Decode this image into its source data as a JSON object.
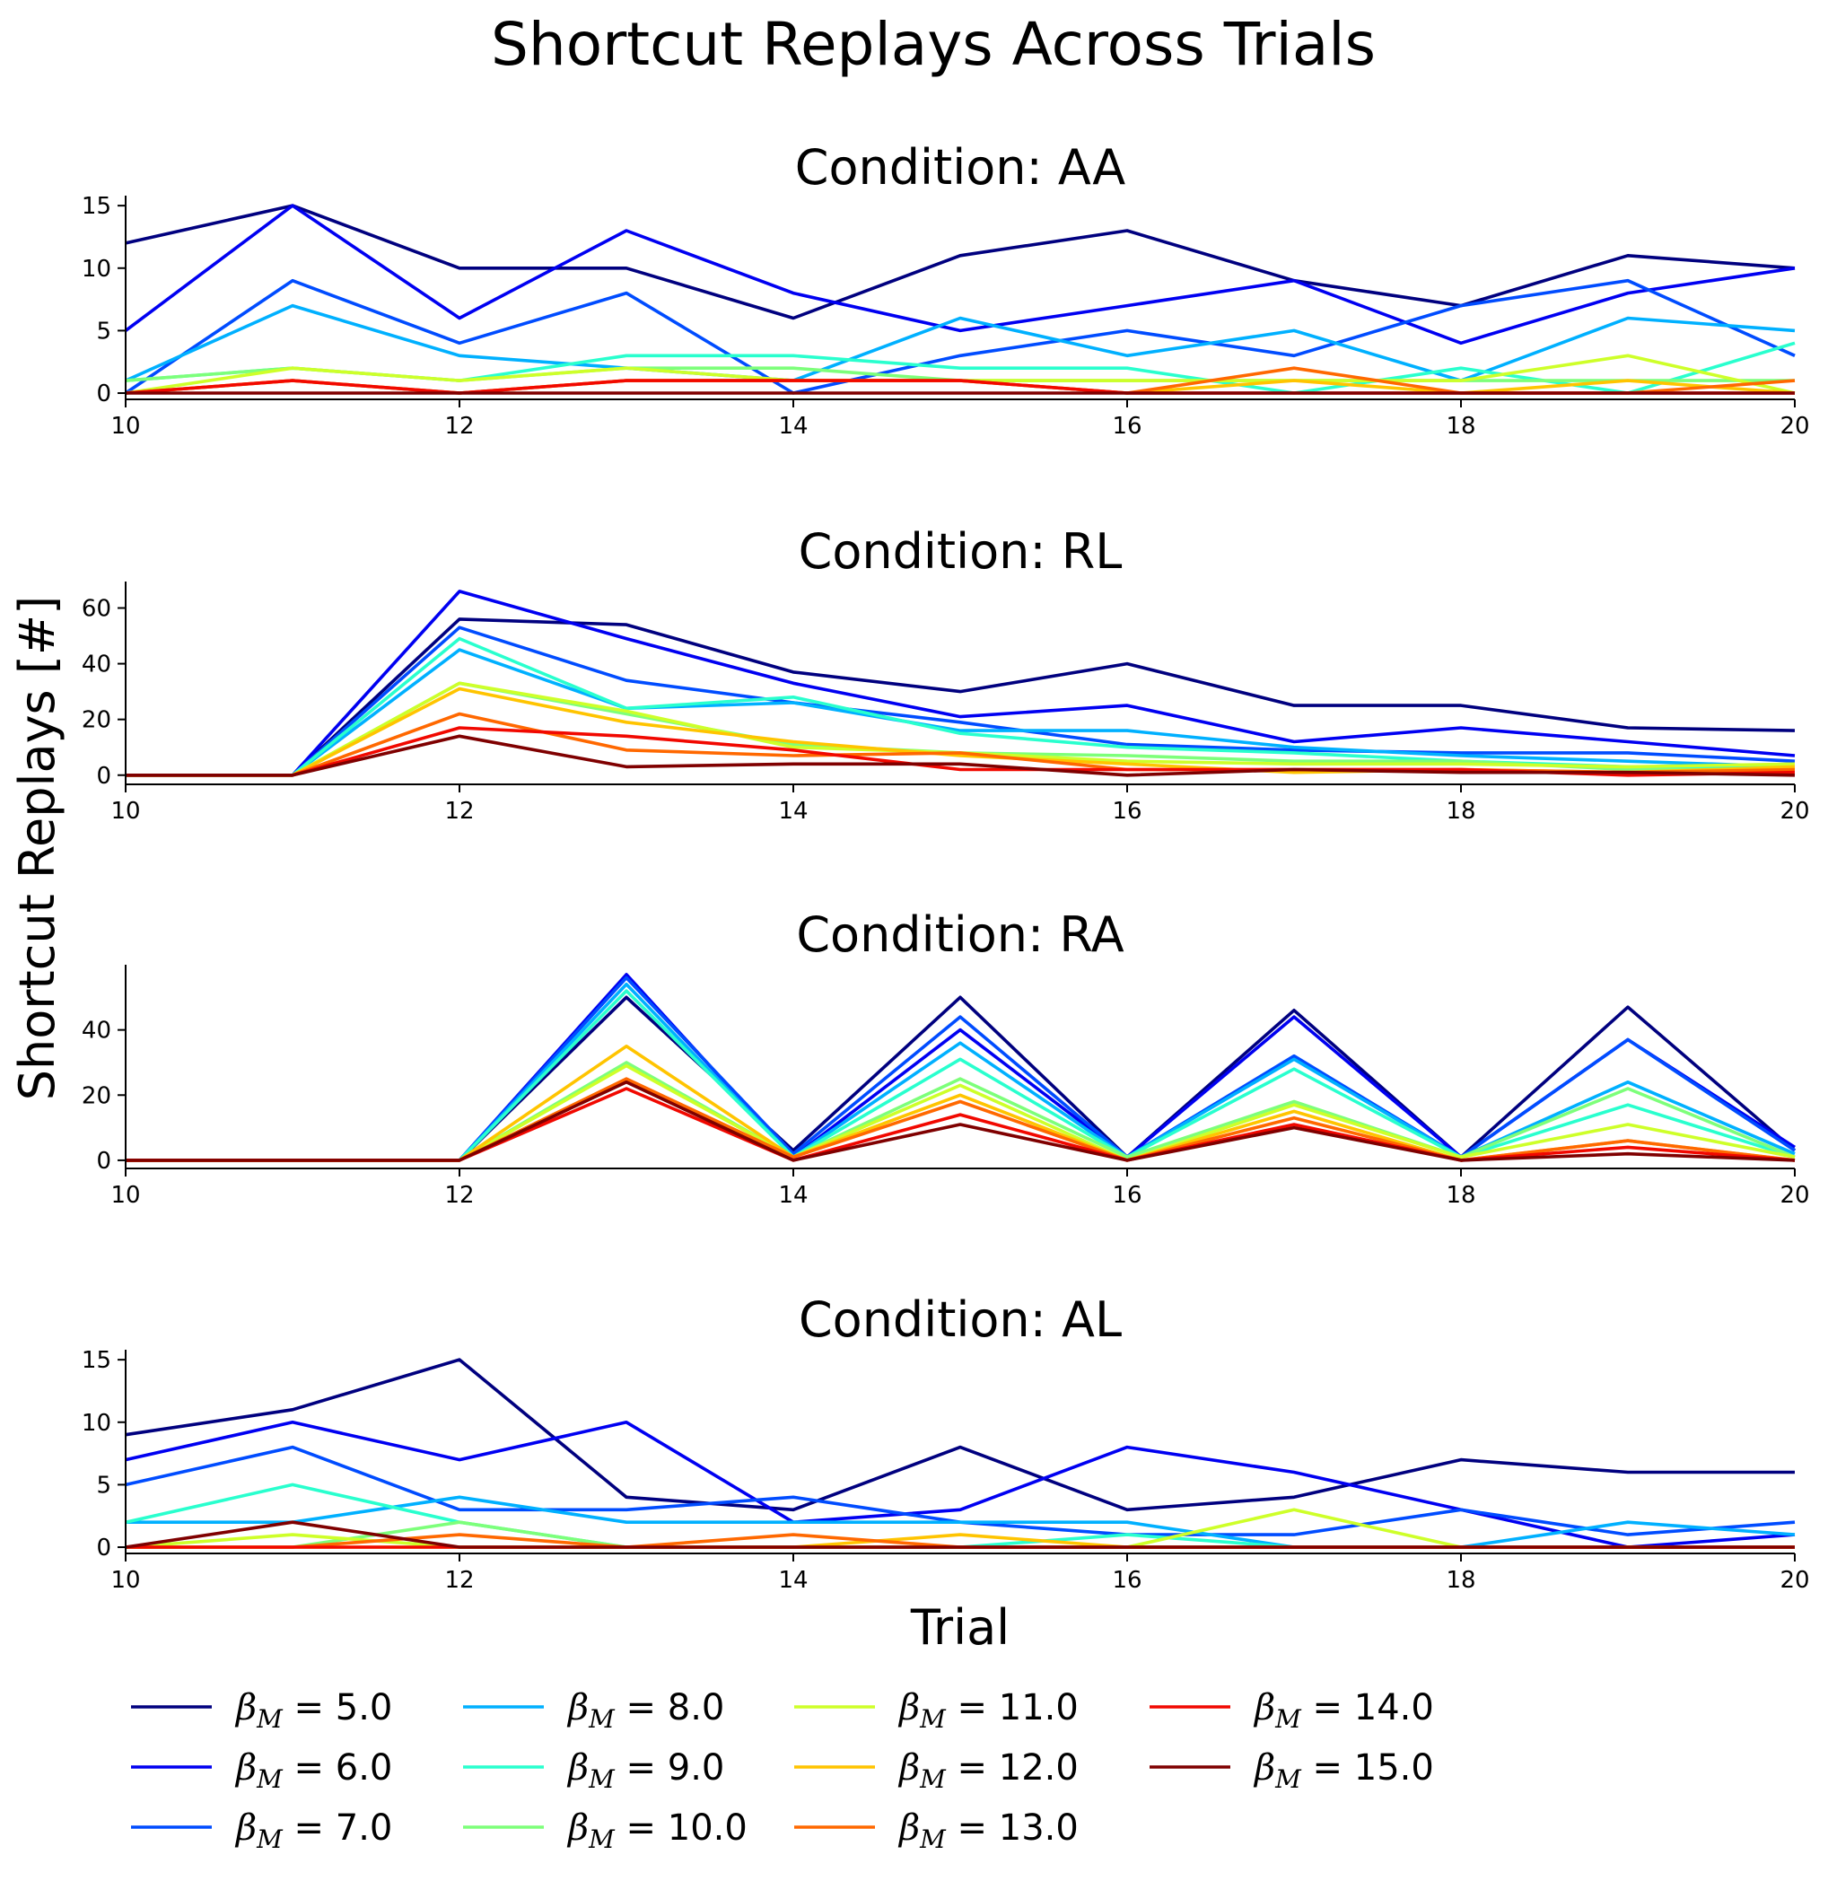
{
  "title": "Shortcut Replays Across Trials",
  "xlabel": "Trial",
  "ylabel": "Shortcut Replays [#]",
  "chart_data": [
    {
      "type": "line",
      "title": "Condition: AA",
      "x": [
        10,
        11,
        12,
        13,
        14,
        15,
        16,
        17,
        18,
        19,
        20
      ],
      "xlim": [
        10,
        20
      ],
      "ylim": [
        -0.5,
        15.8
      ],
      "xticks": [
        10,
        12,
        14,
        16,
        18,
        20
      ],
      "yticks": [
        0,
        5,
        10,
        15
      ],
      "series": [
        {
          "name": "β_M = 5.0",
          "values": [
            12,
            15,
            10,
            10,
            6,
            11,
            13,
            9,
            7,
            11,
            10
          ]
        },
        {
          "name": "β_M = 6.0",
          "values": [
            5,
            15,
            6,
            13,
            8,
            5,
            7,
            9,
            4,
            8,
            10
          ]
        },
        {
          "name": "β_M = 7.0",
          "values": [
            0,
            9,
            4,
            8,
            0,
            3,
            5,
            3,
            7,
            9,
            3
          ]
        },
        {
          "name": "β_M = 8.0",
          "values": [
            1,
            7,
            3,
            2,
            1,
            6,
            3,
            5,
            1,
            6,
            5
          ]
        },
        {
          "name": "β_M = 9.0",
          "values": [
            1,
            2,
            1,
            3,
            3,
            2,
            2,
            0,
            2,
            0,
            4
          ]
        },
        {
          "name": "β_M = 10.0",
          "values": [
            1,
            2,
            1,
            2,
            2,
            1,
            1,
            1,
            1,
            1,
            1
          ]
        },
        {
          "name": "β_M = 11.0",
          "values": [
            0,
            2,
            1,
            2,
            1,
            1,
            1,
            1,
            1,
            3,
            0
          ]
        },
        {
          "name": "β_M = 12.0",
          "values": [
            0,
            1,
            0,
            1,
            1,
            1,
            0,
            1,
            0,
            1,
            0
          ]
        },
        {
          "name": "β_M = 13.0",
          "values": [
            0,
            1,
            0,
            1,
            1,
            1,
            0,
            2,
            0,
            0,
            1
          ]
        },
        {
          "name": "β_M = 14.0",
          "values": [
            0,
            1,
            0,
            1,
            1,
            1,
            0,
            0,
            0,
            0,
            0
          ]
        },
        {
          "name": "β_M = 15.0",
          "values": [
            0,
            0,
            0,
            0,
            0,
            0,
            0,
            0,
            0,
            0,
            0
          ]
        }
      ]
    },
    {
      "type": "line",
      "title": "Condition: RL",
      "x": [
        10,
        11,
        12,
        13,
        14,
        15,
        16,
        17,
        18,
        19,
        20
      ],
      "xlim": [
        10,
        20
      ],
      "ylim": [
        -3.3,
        69.5
      ],
      "xticks": [
        10,
        12,
        14,
        16,
        18,
        20
      ],
      "yticks": [
        0,
        20,
        40,
        60
      ],
      "series": [
        {
          "name": "β_M = 5.0",
          "values": [
            0,
            0,
            56,
            54,
            37,
            30,
            40,
            25,
            25,
            17,
            16
          ]
        },
        {
          "name": "β_M = 6.0",
          "values": [
            0,
            0,
            66,
            49,
            33,
            21,
            25,
            12,
            17,
            12,
            7
          ]
        },
        {
          "name": "β_M = 7.0",
          "values": [
            0,
            0,
            53,
            34,
            26,
            19,
            11,
            9,
            8,
            8,
            5
          ]
        },
        {
          "name": "β_M = 8.0",
          "values": [
            0,
            0,
            45,
            24,
            26,
            16,
            16,
            10,
            7,
            5,
            3
          ]
        },
        {
          "name": "β_M = 9.0",
          "values": [
            0,
            0,
            49,
            24,
            28,
            15,
            10,
            8,
            5,
            3,
            3
          ]
        },
        {
          "name": "β_M = 10.0",
          "values": [
            0,
            0,
            33,
            22,
            11,
            8,
            7,
            5,
            5,
            2,
            2
          ]
        },
        {
          "name": "β_M = 11.0",
          "values": [
            0,
            0,
            33,
            23,
            10,
            8,
            5,
            4,
            4,
            3,
            4
          ]
        },
        {
          "name": "β_M = 12.0",
          "values": [
            0,
            0,
            31,
            19,
            12,
            7,
            4,
            1,
            2,
            1,
            3
          ]
        },
        {
          "name": "β_M = 13.0",
          "values": [
            0,
            0,
            22,
            9,
            7,
            8,
            2,
            2,
            2,
            1,
            2
          ]
        },
        {
          "name": "β_M = 14.0",
          "values": [
            0,
            0,
            17,
            14,
            9,
            2,
            2,
            2,
            2,
            0,
            1
          ]
        },
        {
          "name": "β_M = 15.0",
          "values": [
            0,
            0,
            14,
            3,
            4,
            4,
            0,
            2,
            1,
            1,
            0
          ]
        }
      ]
    },
    {
      "type": "line",
      "title": "Condition: RA",
      "x": [
        10,
        11,
        12,
        13,
        14,
        15,
        16,
        17,
        18,
        19,
        20
      ],
      "xlim": [
        10,
        20
      ],
      "ylim": [
        -2.5,
        60
      ],
      "xticks": [
        10,
        12,
        14,
        16,
        18,
        20
      ],
      "yticks": [
        0,
        20,
        40
      ],
      "series": [
        {
          "name": "β_M = 5.0",
          "values": [
            0,
            0,
            0,
            50,
            3,
            50,
            1,
            46,
            1,
            47,
            3
          ]
        },
        {
          "name": "β_M = 6.0",
          "values": [
            0,
            0,
            0,
            57,
            1,
            40,
            1,
            44,
            1,
            37,
            4
          ]
        },
        {
          "name": "β_M = 7.0",
          "values": [
            0,
            0,
            0,
            56,
            2,
            44,
            1,
            32,
            1,
            37,
            3
          ]
        },
        {
          "name": "β_M = 8.0",
          "values": [
            0,
            0,
            0,
            54,
            1,
            36,
            1,
            31,
            1,
            24,
            2
          ]
        },
        {
          "name": "β_M = 9.0",
          "values": [
            0,
            0,
            0,
            52,
            1,
            31,
            1,
            28,
            1,
            17,
            1
          ]
        },
        {
          "name": "β_M = 10.0",
          "values": [
            0,
            0,
            0,
            30,
            1,
            25,
            1,
            18,
            1,
            22,
            1
          ]
        },
        {
          "name": "β_M = 11.0",
          "values": [
            0,
            0,
            0,
            29,
            1,
            23,
            0,
            17,
            1,
            11,
            1
          ]
        },
        {
          "name": "β_M = 12.0",
          "values": [
            0,
            0,
            0,
            35,
            1,
            20,
            0,
            15,
            0,
            6,
            0
          ]
        },
        {
          "name": "β_M = 13.0",
          "values": [
            0,
            0,
            0,
            25,
            1,
            18,
            0,
            13,
            0,
            6,
            0
          ]
        },
        {
          "name": "β_M = 14.0",
          "values": [
            0,
            0,
            0,
            22,
            0,
            14,
            0,
            11,
            0,
            4,
            0
          ]
        },
        {
          "name": "β_M = 15.0",
          "values": [
            0,
            0,
            0,
            24,
            0,
            11,
            0,
            10,
            0,
            2,
            0
          ]
        }
      ]
    },
    {
      "type": "line",
      "title": "Condition: AL",
      "x": [
        10,
        11,
        12,
        13,
        14,
        15,
        16,
        17,
        18,
        19,
        20
      ],
      "xlim": [
        10,
        20
      ],
      "ylim": [
        -0.5,
        15.8
      ],
      "xticks": [
        10,
        12,
        14,
        16,
        18,
        20
      ],
      "yticks": [
        0,
        5,
        10,
        15
      ],
      "series": [
        {
          "name": "β_M = 5.0",
          "values": [
            9,
            11,
            15,
            4,
            3,
            8,
            3,
            4,
            7,
            6,
            6
          ]
        },
        {
          "name": "β_M = 6.0",
          "values": [
            7,
            10,
            7,
            10,
            2,
            3,
            8,
            6,
            3,
            0,
            1
          ]
        },
        {
          "name": "β_M = 7.0",
          "values": [
            5,
            8,
            3,
            3,
            4,
            2,
            1,
            1,
            3,
            1,
            2
          ]
        },
        {
          "name": "β_M = 8.0",
          "values": [
            2,
            2,
            4,
            2,
            2,
            2,
            2,
            0,
            0,
            2,
            1
          ]
        },
        {
          "name": "β_M = 9.0",
          "values": [
            2,
            5,
            2,
            0,
            0,
            0,
            1,
            0,
            0,
            0,
            0
          ]
        },
        {
          "name": "β_M = 10.0",
          "values": [
            0,
            0,
            2,
            0,
            0,
            0,
            0,
            0,
            0,
            0,
            0
          ]
        },
        {
          "name": "β_M = 11.0",
          "values": [
            0,
            1,
            0,
            0,
            0,
            0,
            0,
            3,
            0,
            0,
            0
          ]
        },
        {
          "name": "β_M = 12.0",
          "values": [
            0,
            0,
            0,
            0,
            0,
            1,
            0,
            0,
            0,
            0,
            0
          ]
        },
        {
          "name": "β_M = 13.0",
          "values": [
            0,
            0,
            1,
            0,
            1,
            0,
            0,
            0,
            0,
            0,
            0
          ]
        },
        {
          "name": "β_M = 14.0",
          "values": [
            0,
            0,
            0,
            0,
            0,
            0,
            0,
            0,
            0,
            0,
            0
          ]
        },
        {
          "name": "β_M = 15.0",
          "values": [
            0,
            2,
            0,
            0,
            0,
            0,
            0,
            0,
            0,
            0,
            0
          ]
        }
      ]
    }
  ],
  "legend": {
    "placement": "bottom",
    "entries": [
      {
        "symbol": "β",
        "sub": "M",
        "eq": " = ",
        "value": "5.0",
        "color": "#00007f"
      },
      {
        "symbol": "β",
        "sub": "M",
        "eq": " = ",
        "value": "6.0",
        "color": "#0000f1"
      },
      {
        "symbol": "β",
        "sub": "M",
        "eq": " = ",
        "value": "7.0",
        "color": "#004cff"
      },
      {
        "symbol": "β",
        "sub": "M",
        "eq": " = ",
        "value": "8.0",
        "color": "#00b0ff"
      },
      {
        "symbol": "β",
        "sub": "M",
        "eq": " = ",
        "value": "9.0",
        "color": "#29ffce"
      },
      {
        "symbol": "β",
        "sub": "M",
        "eq": " = ",
        "value": "10.0",
        "color": "#7dff7a"
      },
      {
        "symbol": "β",
        "sub": "M",
        "eq": " = ",
        "value": "11.0",
        "color": "#ceff29"
      },
      {
        "symbol": "β",
        "sub": "M",
        "eq": " = ",
        "value": "12.0",
        "color": "#ffc400"
      },
      {
        "symbol": "β",
        "sub": "M",
        "eq": " = ",
        "value": "13.0",
        "color": "#ff6800"
      },
      {
        "symbol": "β",
        "sub": "M",
        "eq": " = ",
        "value": "14.0",
        "color": "#f10800"
      },
      {
        "symbol": "β",
        "sub": "M",
        "eq": " = ",
        "value": "15.0",
        "color": "#7f0000"
      }
    ]
  }
}
